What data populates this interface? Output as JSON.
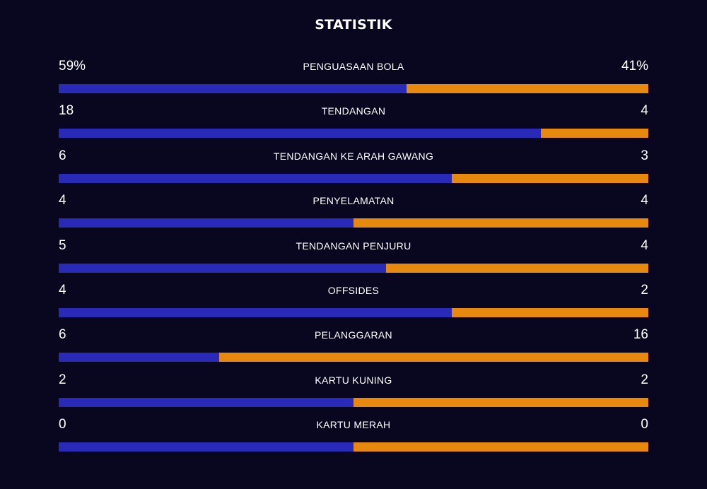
{
  "title": "STATISTIK",
  "colors": {
    "home": "#2a2ab8",
    "away": "#e8890f",
    "background": "#090720"
  },
  "chart_data": {
    "type": "bar",
    "stats": [
      {
        "label": "PENGUASAAN BOLA",
        "home": 59,
        "away": 41,
        "home_display": "59%",
        "away_display": "41%"
      },
      {
        "label": "TENDANGAN",
        "home": 18,
        "away": 4,
        "home_display": "18",
        "away_display": "4"
      },
      {
        "label": "TENDANGAN KE ARAH GAWANG",
        "home": 6,
        "away": 3,
        "home_display": "6",
        "away_display": "3"
      },
      {
        "label": "PENYELAMATAN",
        "home": 4,
        "away": 4,
        "home_display": "4",
        "away_display": "4"
      },
      {
        "label": "TENDANGAN PENJURU",
        "home": 5,
        "away": 4,
        "home_display": "5",
        "away_display": "4"
      },
      {
        "label": "OFFSIDES",
        "home": 4,
        "away": 2,
        "home_display": "4",
        "away_display": "2"
      },
      {
        "label": "PELANGGARAN",
        "home": 6,
        "away": 16,
        "home_display": "6",
        "away_display": "16"
      },
      {
        "label": "KARTU KUNING",
        "home": 2,
        "away": 2,
        "home_display": "2",
        "away_display": "2"
      },
      {
        "label": "KARTU MERAH",
        "home": 0,
        "away": 0,
        "home_display": "0",
        "away_display": "0"
      }
    ]
  }
}
